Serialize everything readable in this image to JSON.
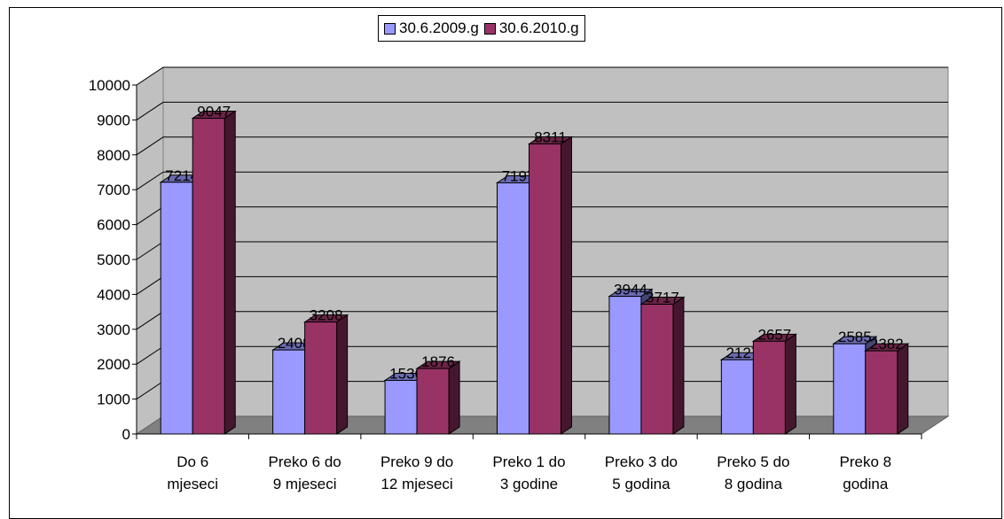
{
  "chart_data": {
    "type": "bar",
    "categories": [
      [
        "Do 6",
        "mjeseci"
      ],
      [
        "Preko 6 do",
        "9 mjeseci"
      ],
      [
        "Preko 9 do",
        "12 mjeseci"
      ],
      [
        "Preko 1 do",
        "3 godine"
      ],
      [
        "Preko 3 do",
        "5 godina"
      ],
      [
        "Preko 5 do",
        "8 godina"
      ],
      [
        "Preko 8",
        "godina"
      ]
    ],
    "series": [
      {
        "name": "30.6.2009.g",
        "color": "#9999ff",
        "values": [
          7214,
          2408,
          1536,
          7197,
          3944,
          2127,
          2585
        ]
      },
      {
        "name": "30.6.2010.g",
        "color": "#993366",
        "values": [
          9047,
          3208,
          1876,
          8311,
          3717,
          2657,
          2382
        ]
      }
    ],
    "yticks": [
      0,
      1000,
      2000,
      3000,
      4000,
      5000,
      6000,
      7000,
      8000,
      9000,
      10000
    ],
    "ylim": [
      0,
      10000
    ],
    "grid": true,
    "data_labels": true,
    "legend_position": "top",
    "style": "3d-clustered-column",
    "wall_color": "#c0c0c0",
    "floor_color": "#808080"
  }
}
